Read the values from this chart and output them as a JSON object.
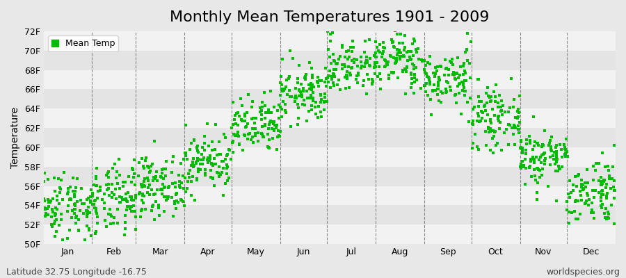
{
  "title": "Monthly Mean Temperatures 1901 - 2009",
  "ylabel": "Temperature",
  "ylim": [
    50,
    72
  ],
  "ytick_values": [
    50,
    52,
    54,
    56,
    58,
    60,
    62,
    64,
    66,
    68,
    70,
    72
  ],
  "ytick_labels": [
    "50F",
    "52F",
    "54F",
    "56F",
    "58F",
    "60F",
    "62F",
    "64F",
    "66F",
    "68F",
    "70F",
    "72F"
  ],
  "month_labels": [
    "Jan",
    "Feb",
    "Mar",
    "Apr",
    "May",
    "Jun",
    "Jul",
    "Aug",
    "Sep",
    "Oct",
    "Nov",
    "Dec"
  ],
  "month_days": [
    31,
    28,
    31,
    30,
    31,
    30,
    31,
    31,
    30,
    31,
    30,
    31
  ],
  "marker_color": "#00BB00",
  "background_color": "#E8E8E8",
  "band_color_light": "#F2F2F2",
  "band_color_dark": "#E4E4E4",
  "legend_label": "Mean Temp",
  "footer_left": "Latitude 32.75 Longitude -16.75",
  "footer_right": "worldspecies.org",
  "title_fontsize": 16,
  "axis_fontsize": 9,
  "footer_fontsize": 9,
  "monthly_means": [
    54.0,
    54.5,
    56.0,
    58.5,
    62.0,
    65.5,
    68.5,
    69.0,
    67.0,
    63.0,
    59.0,
    55.5
  ],
  "monthly_std": [
    1.8,
    1.8,
    1.5,
    1.5,
    1.5,
    1.5,
    1.5,
    1.5,
    1.5,
    1.5,
    1.5,
    1.8
  ],
  "n_years": 109,
  "seed": 42
}
